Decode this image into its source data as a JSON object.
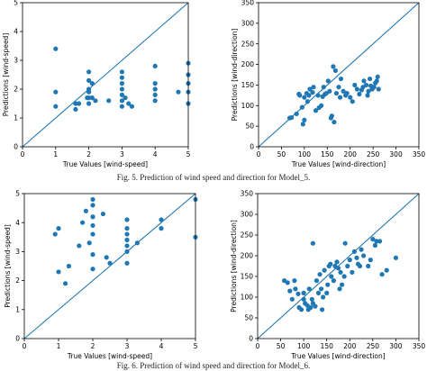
{
  "figures": [
    {
      "caption": "Fig. 5. Prediction of wind speed and direction for Model_5."
    },
    {
      "caption": "Fig. 6. Prediction of wind speed and direction for Model_6."
    }
  ],
  "style": {
    "point_color": "#1f77b4",
    "line_color": "#1f77b4"
  },
  "chart_data": [
    {
      "type": "scatter",
      "title": "",
      "xlabel": "True Values [wind-speed]",
      "ylabel": "Predictions [wind-speed]",
      "xlim": [
        0,
        5
      ],
      "ylim": [
        0,
        5
      ],
      "xticks": [
        0,
        1,
        2,
        3,
        4,
        5
      ],
      "yticks": [
        0,
        1,
        2,
        3,
        4,
        5
      ],
      "identity_line": true,
      "points": [
        [
          1.0,
          3.4
        ],
        [
          1.0,
          1.9
        ],
        [
          1.0,
          1.4
        ],
        [
          1.95,
          1.7
        ],
        [
          2.0,
          2.6
        ],
        [
          2.0,
          2.3
        ],
        [
          2.0,
          2.0
        ],
        [
          2.0,
          1.9
        ],
        [
          2.0,
          1.7
        ],
        [
          2.0,
          1.5
        ],
        [
          2.1,
          1.7
        ],
        [
          2.1,
          2.2
        ],
        [
          2.2,
          1.6
        ],
        [
          1.7,
          1.5
        ],
        [
          1.6,
          1.3
        ],
        [
          1.6,
          1.5
        ],
        [
          2.6,
          1.6
        ],
        [
          3.0,
          2.6
        ],
        [
          3.0,
          2.4
        ],
        [
          3.0,
          2.2
        ],
        [
          3.0,
          2.0
        ],
        [
          3.0,
          1.8
        ],
        [
          3.0,
          1.6
        ],
        [
          3.0,
          1.4
        ],
        [
          3.1,
          1.7
        ],
        [
          3.2,
          1.5
        ],
        [
          3.3,
          1.4
        ],
        [
          4.0,
          2.8
        ],
        [
          4.0,
          2.2
        ],
        [
          4.0,
          2.0
        ],
        [
          4.0,
          1.8
        ],
        [
          4.0,
          1.6
        ],
        [
          4.7,
          1.9
        ],
        [
          5.0,
          2.9
        ],
        [
          5.0,
          2.5
        ],
        [
          5.0,
          2.2
        ],
        [
          5.0,
          1.9
        ],
        [
          5.0,
          1.5
        ]
      ]
    },
    {
      "type": "scatter",
      "title": "",
      "xlabel": "True Values [wind-direction]",
      "ylabel": "Predictions [wind-direction]",
      "xlim": [
        0,
        350
      ],
      "ylim": [
        0,
        350
      ],
      "xticks": [
        0,
        50,
        100,
        150,
        200,
        250,
        300,
        350
      ],
      "yticks": [
        0,
        50,
        100,
        150,
        200,
        250,
        300,
        350
      ],
      "identity_line": true,
      "points": [
        [
          68,
          70
        ],
        [
          72,
          71
        ],
        [
          83,
          80
        ],
        [
          88,
          128
        ],
        [
          90,
          125
        ],
        [
          95,
          96
        ],
        [
          97,
          55
        ],
        [
          100,
          65
        ],
        [
          100,
          120
        ],
        [
          105,
          130
        ],
        [
          107,
          110
        ],
        [
          110,
          125
        ],
        [
          112,
          140
        ],
        [
          118,
          132
        ],
        [
          125,
          88
        ],
        [
          130,
          125
        ],
        [
          132,
          95
        ],
        [
          137,
          100
        ],
        [
          140,
          122
        ],
        [
          142,
          145
        ],
        [
          145,
          128
        ],
        [
          148,
          130
        ],
        [
          152,
          160
        ],
        [
          155,
          135
        ],
        [
          158,
          70
        ],
        [
          160,
          75
        ],
        [
          163,
          195
        ],
        [
          168,
          185
        ],
        [
          170,
          130
        ],
        [
          175,
          145
        ],
        [
          178,
          120
        ],
        [
          180,
          165
        ],
        [
          185,
          135
        ],
        [
          190,
          125
        ],
        [
          193,
          130
        ],
        [
          200,
          120
        ],
        [
          205,
          110
        ],
        [
          210,
          150
        ],
        [
          215,
          140
        ],
        [
          220,
          128
        ],
        [
          225,
          138
        ],
        [
          228,
          145
        ],
        [
          230,
          160
        ],
        [
          235,
          150
        ],
        [
          238,
          125
        ],
        [
          240,
          135
        ],
        [
          243,
          165
        ],
        [
          245,
          148
        ],
        [
          248,
          140
        ],
        [
          252,
          145
        ],
        [
          255,
          155
        ],
        [
          258,
          160
        ],
        [
          260,
          170
        ],
        [
          262,
          140
        ],
        [
          165,
          60
        ],
        [
          120,
          145
        ]
      ]
    },
    {
      "type": "scatter",
      "title": "",
      "xlabel": "True Values [wind-speed]",
      "ylabel": "Predictions [wind-speed]",
      "xlim": [
        0,
        5
      ],
      "ylim": [
        0,
        5
      ],
      "xticks": [
        0,
        1,
        2,
        3,
        4,
        5
      ],
      "yticks": [
        0,
        1,
        2,
        3,
        4,
        5
      ],
      "identity_line": true,
      "points": [
        [
          0.9,
          3.6
        ],
        [
          1.0,
          2.3
        ],
        [
          1.0,
          3.8
        ],
        [
          1.2,
          1.9
        ],
        [
          1.3,
          2.5
        ],
        [
          1.6,
          3.2
        ],
        [
          1.7,
          4.0
        ],
        [
          1.8,
          4.4
        ],
        [
          1.9,
          3.3
        ],
        [
          2.0,
          4.8
        ],
        [
          2.0,
          4.6
        ],
        [
          2.0,
          4.2
        ],
        [
          2.0,
          3.9
        ],
        [
          2.0,
          3.6
        ],
        [
          2.0,
          2.4
        ],
        [
          2.0,
          2.9
        ],
        [
          2.3,
          4.3
        ],
        [
          2.4,
          2.8
        ],
        [
          2.5,
          2.6
        ],
        [
          3.0,
          4.1
        ],
        [
          3.0,
          3.8
        ],
        [
          3.0,
          3.6
        ],
        [
          3.0,
          3.4
        ],
        [
          3.0,
          3.2
        ],
        [
          3.0,
          3.0
        ],
        [
          3.0,
          2.6
        ],
        [
          3.3,
          3.3
        ],
        [
          4.0,
          4.1
        ],
        [
          4.0,
          3.8
        ],
        [
          5.0,
          4.8
        ],
        [
          5.0,
          3.5
        ]
      ]
    },
    {
      "type": "scatter",
      "title": "",
      "xlabel": "True Values [wind-direction]",
      "ylabel": "Predictions [wind-direction]",
      "xlim": [
        0,
        350
      ],
      "ylim": [
        0,
        350
      ],
      "xticks": [
        0,
        50,
        100,
        150,
        200,
        250,
        300,
        350
      ],
      "yticks": [
        0,
        50,
        100,
        150,
        200,
        250,
        300,
        350
      ],
      "identity_line": true,
      "points": [
        [
          58,
          140
        ],
        [
          65,
          135
        ],
        [
          70,
          115
        ],
        [
          75,
          95
        ],
        [
          80,
          140
        ],
        [
          82,
          120
        ],
        [
          88,
          108
        ],
        [
          90,
          75
        ],
        [
          95,
          70
        ],
        [
          100,
          110
        ],
        [
          100,
          95
        ],
        [
          103,
          85
        ],
        [
          108,
          80
        ],
        [
          110,
          70
        ],
        [
          112,
          120
        ],
        [
          115,
          75
        ],
        [
          118,
          95
        ],
        [
          120,
          85
        ],
        [
          125,
          78
        ],
        [
          128,
          140
        ],
        [
          132,
          110
        ],
        [
          135,
          155
        ],
        [
          138,
          120
        ],
        [
          142,
          100
        ],
        [
          145,
          165
        ],
        [
          150,
          110
        ],
        [
          152,
          130
        ],
        [
          155,
          175
        ],
        [
          158,
          180
        ],
        [
          160,
          150
        ],
        [
          165,
          140
        ],
        [
          168,
          175
        ],
        [
          172,
          185
        ],
        [
          175,
          170
        ],
        [
          178,
          120
        ],
        [
          180,
          160
        ],
        [
          183,
          130
        ],
        [
          188,
          150
        ],
        [
          190,
          230
        ],
        [
          195,
          175
        ],
        [
          200,
          190
        ],
        [
          205,
          160
        ],
        [
          210,
          210
        ],
        [
          215,
          195
        ],
        [
          218,
          180
        ],
        [
          222,
          175
        ],
        [
          225,
          215
        ],
        [
          230,
          200
        ],
        [
          240,
          175
        ],
        [
          245,
          190
        ],
        [
          250,
          240
        ],
        [
          255,
          225
        ],
        [
          258,
          235
        ],
        [
          265,
          235
        ],
        [
          270,
          155
        ],
        [
          280,
          165
        ],
        [
          300,
          195
        ],
        [
          120,
          230
        ],
        [
          140,
          70
        ]
      ]
    }
  ]
}
